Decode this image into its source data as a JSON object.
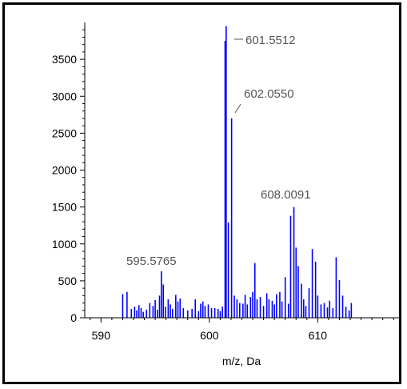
{
  "chart_data": {
    "type": "bar",
    "title": "",
    "xlabel": "m/z, Da",
    "ylabel": "",
    "xlim": [
      588.5,
      617.5
    ],
    "ylim": [
      0,
      4000
    ],
    "x_ticks": [
      "590",
      "600",
      "610"
    ],
    "y_ticks": [
      "0",
      "500",
      "1000",
      "1500",
      "2000",
      "2500",
      "3000",
      "3500"
    ],
    "grid": false,
    "legend": "none",
    "colors": {
      "bars": "#0000ff",
      "axes": "#000000",
      "annotations": "#555555"
    },
    "annotations": [
      "601.5512",
      "602.0550",
      "608.0091",
      "595.5765"
    ],
    "series": [
      {
        "x": [
          592.0,
          592.4,
          592.8,
          593.1,
          593.3,
          593.5,
          593.7,
          593.9,
          594.2,
          594.5,
          594.8,
          595.0,
          595.2,
          595.4,
          595.57,
          595.75,
          595.95,
          596.2,
          596.4,
          596.6,
          596.9,
          597.1,
          597.3,
          597.6,
          598.0,
          598.4,
          598.7,
          599.0,
          599.2,
          599.4,
          599.6,
          599.9,
          600.2,
          600.5,
          600.8,
          601.0,
          601.2,
          601.45,
          601.55,
          601.75,
          602.05,
          602.3,
          602.55,
          602.8,
          603.1,
          603.3,
          603.5,
          603.8,
          604.0,
          604.2,
          604.4,
          604.7,
          605.0,
          605.3,
          605.5,
          605.8,
          606.0,
          606.2,
          606.5,
          606.7,
          607.0,
          607.3,
          607.5,
          607.8,
          608.0,
          608.2,
          608.5,
          608.7,
          608.9,
          609.2,
          609.5,
          609.8,
          610.0,
          610.3,
          610.6,
          610.9,
          611.1,
          611.4,
          611.7,
          612.0,
          612.3,
          612.6,
          612.9,
          613.1
        ],
        "values": [
          320,
          350,
          120,
          150,
          100,
          170,
          130,
          80,
          110,
          200,
          160,
          240,
          110,
          300,
          630,
          450,
          150,
          250,
          180,
          120,
          310,
          220,
          260,
          130,
          100,
          120,
          250,
          90,
          190,
          220,
          160,
          180,
          130,
          130,
          120,
          90,
          150,
          3750,
          3950,
          1290,
          2700,
          300,
          250,
          200,
          190,
          310,
          180,
          280,
          350,
          740,
          250,
          280,
          160,
          330,
          250,
          230,
          180,
          320,
          350,
          220,
          550,
          190,
          1380,
          1500,
          950,
          700,
          460,
          250,
          160,
          400,
          930,
          760,
          300,
          180,
          200,
          140,
          230,
          130,
          820,
          510,
          300,
          150,
          100,
          200
        ]
      }
    ]
  }
}
